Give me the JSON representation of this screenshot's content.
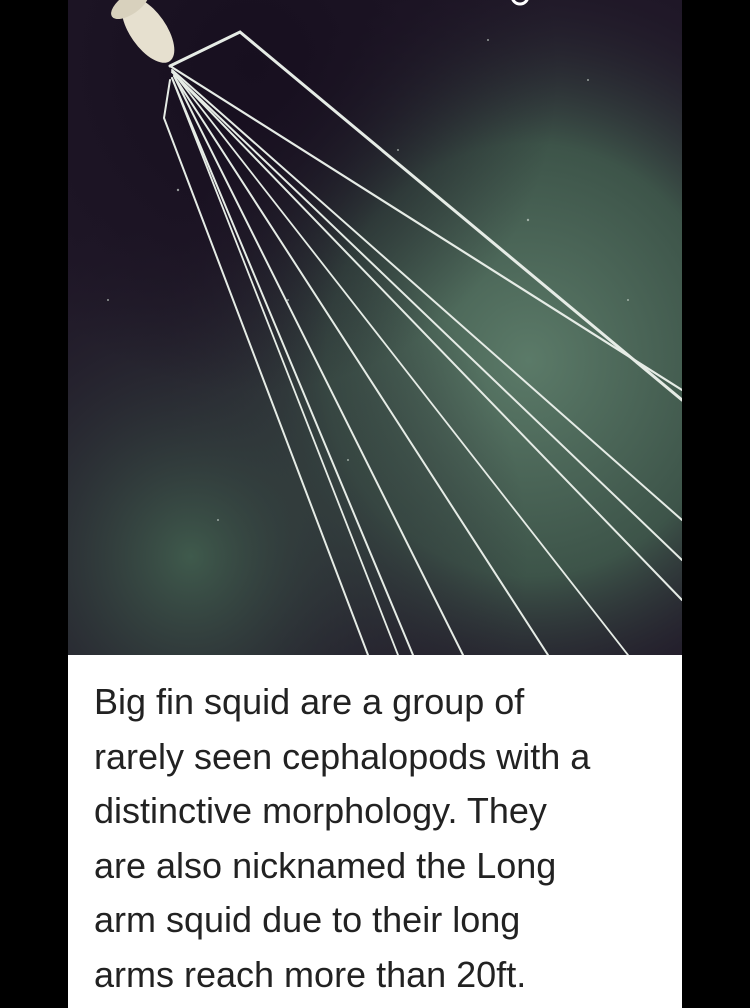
{
  "photo": {
    "subject_icon": "squid-photo",
    "colors": {
      "water_dark": "#1c1424",
      "water_green": "#4f6b5c",
      "arm": "#e9eee8",
      "mantle": "#e6e0cf"
    }
  },
  "caption": {
    "text": "Big fin squid are a group of\nrarely seen cephalopods with a\ndistinctive morphology. They\nare also nicknamed the Long\narm squid due to their long\narms reach more than 20ft."
  },
  "toolbar": {
    "icons": [
      "rotate-icon",
      "square-icon",
      "close-icon"
    ]
  }
}
